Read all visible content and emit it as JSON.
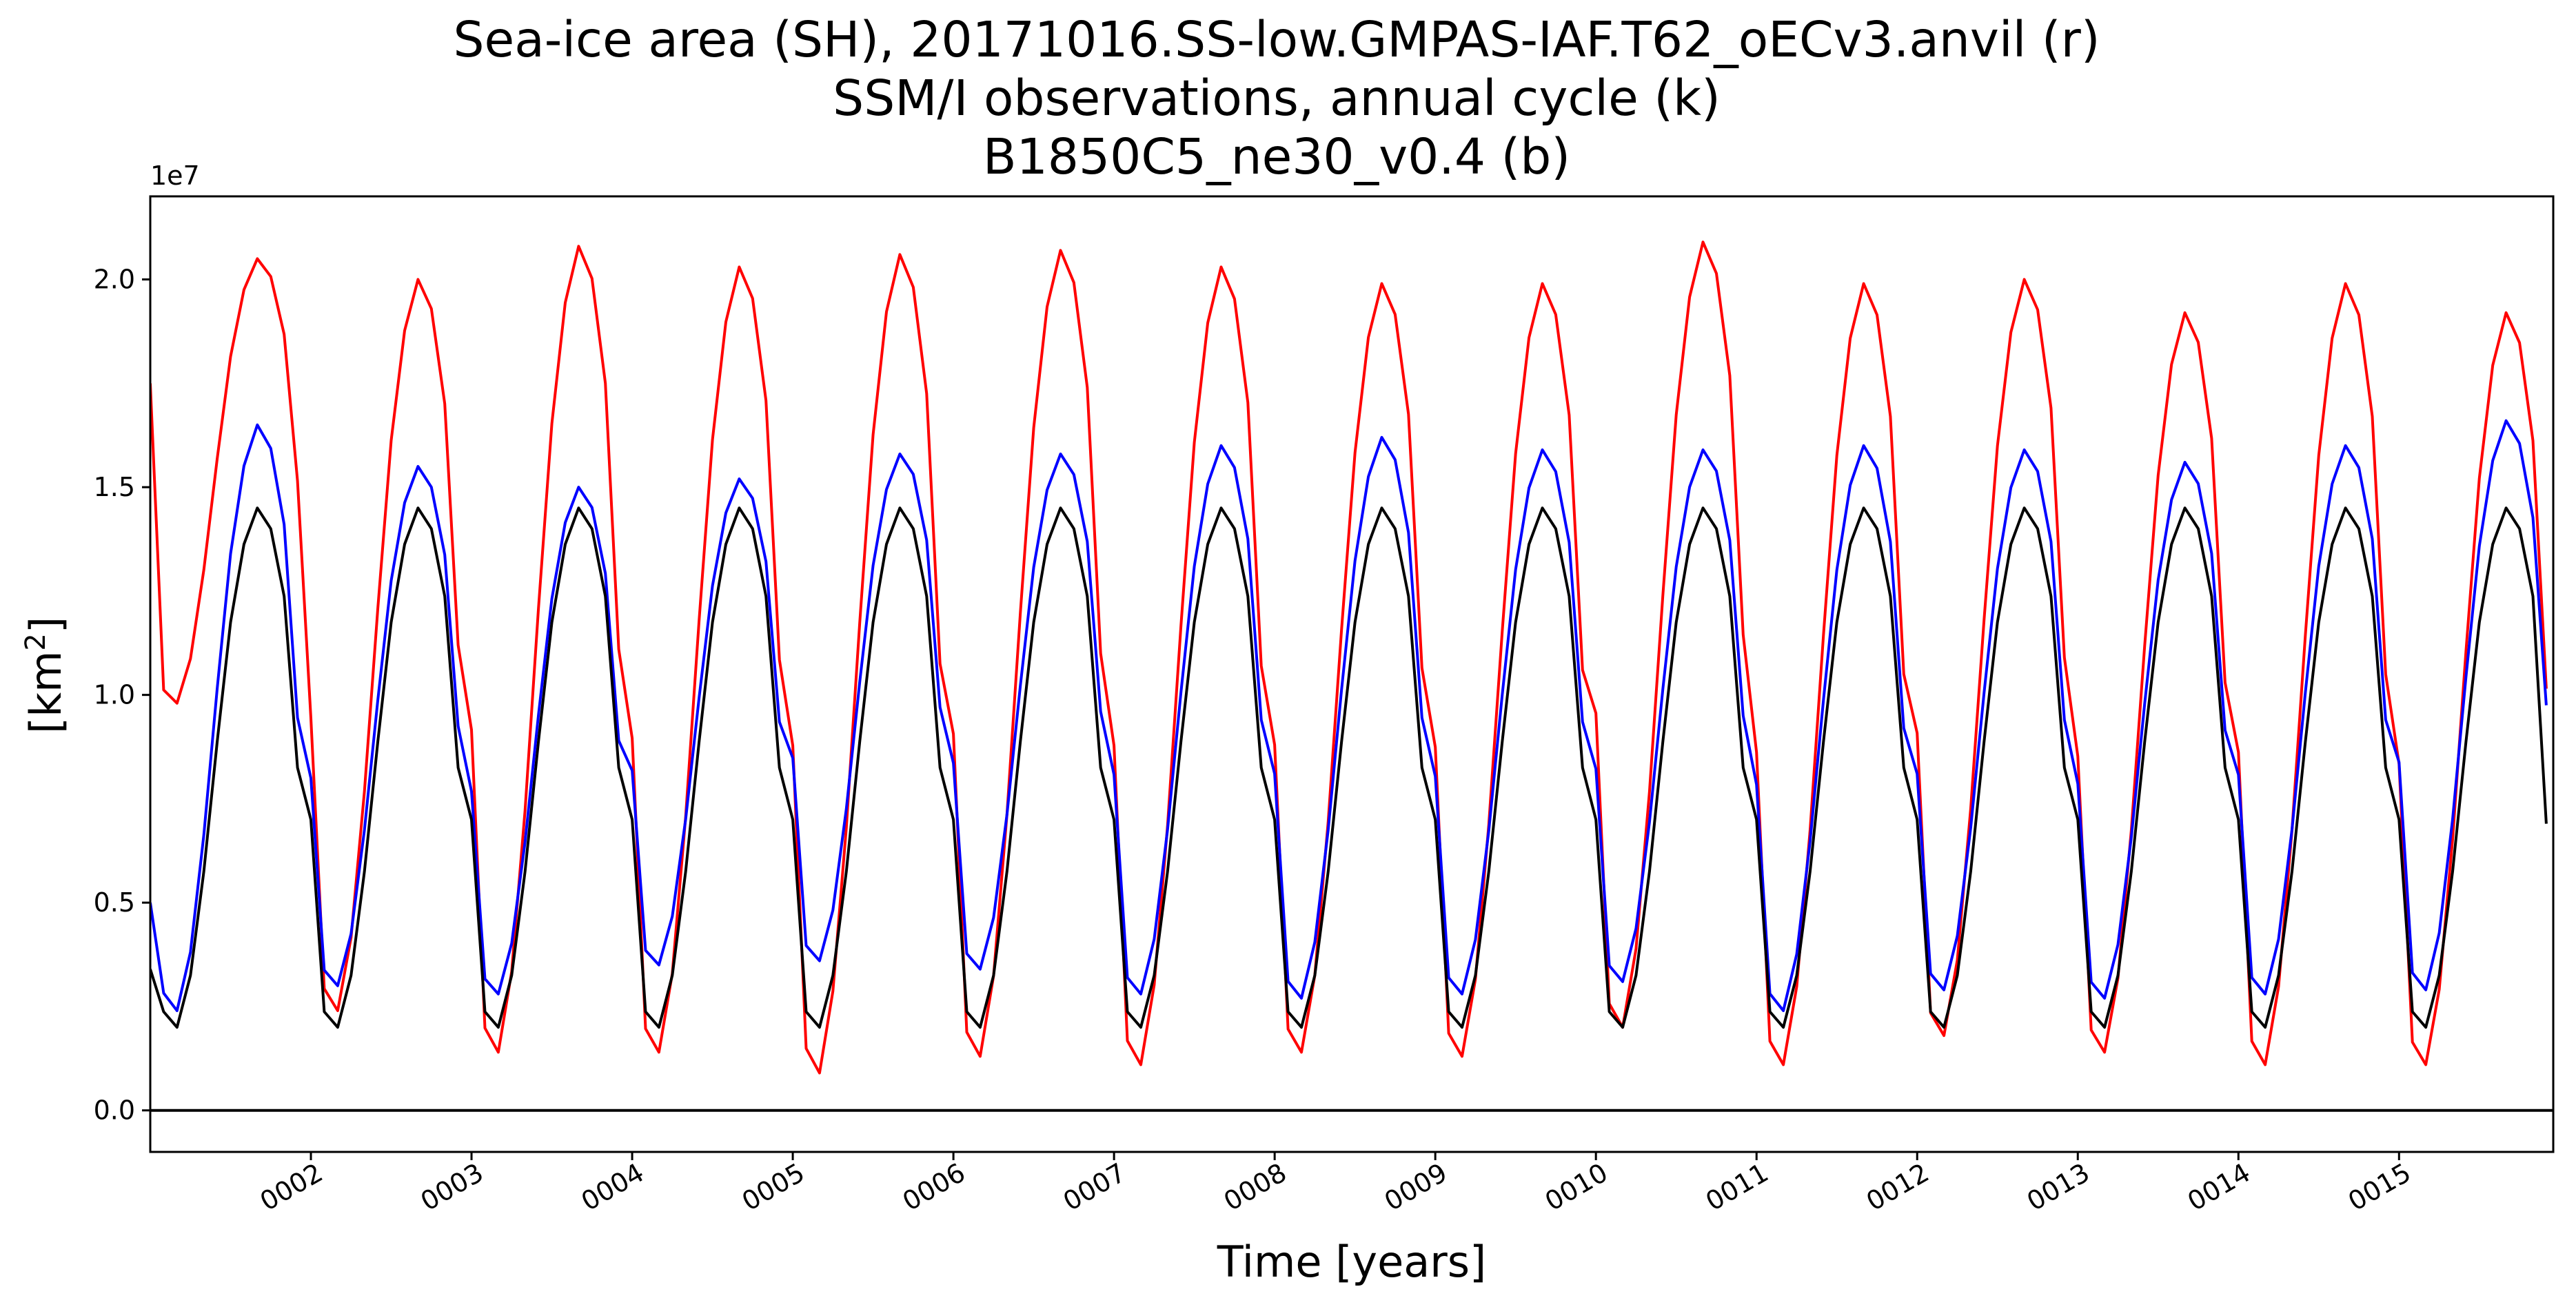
{
  "chart_data": {
    "type": "line",
    "title_lines": [
      "Sea-ice area (SH), 20171016.SS-low.GMPAS-IAF.T62_oECv3.anvil (r)",
      "SSM/I observations, annual cycle (k)",
      "B1850C5_ne30_v0.4 (b)"
    ],
    "xlabel": "Time [years]",
    "ylabel": "[km",
    "ylabel_sup": "2",
    "ylabel_close": "]",
    "y_offset_label": "1e7",
    "xlim": [
      1.0,
      15.96
    ],
    "ylim": [
      -1000000,
      22000000
    ],
    "x_ticks": [
      2,
      3,
      4,
      5,
      6,
      7,
      8,
      9,
      10,
      11,
      12,
      13,
      14,
      15
    ],
    "x_tick_labels": [
      "0002",
      "0003",
      "0004",
      "0005",
      "0006",
      "0007",
      "0008",
      "0009",
      "0010",
      "0011",
      "0012",
      "0013",
      "0014",
      "0015"
    ],
    "y_ticks": [
      0,
      5000000,
      10000000,
      15000000,
      20000000
    ],
    "y_tick_labels": [
      "0.0",
      "0.5",
      "1.0",
      "1.5",
      "2.0"
    ],
    "reference_line_y": 0,
    "series": [
      {
        "color": "#ff0000",
        "annual_max": [
          20500000,
          20000000,
          20800000,
          20300000,
          20600000,
          20700000,
          20300000,
          19900000,
          19900000,
          20900000,
          19900000,
          20000000,
          19200000,
          19900000,
          19200000
        ],
        "annual_min": [
          9800000,
          2400000,
          1400000,
          1400000,
          900000,
          1300000,
          1100000,
          1400000,
          1300000,
          2000000,
          1100000,
          1800000,
          1400000,
          1100000,
          1100000
        ],
        "first_value": 17500000
      },
      {
        "color": "#0000ff",
        "annual_max": [
          16500000,
          15500000,
          15000000,
          15200000,
          15800000,
          15800000,
          16000000,
          16200000,
          15900000,
          15900000,
          16000000,
          15900000,
          15600000,
          16000000,
          16600000
        ],
        "annual_min": [
          2400000,
          3000000,
          2800000,
          3500000,
          3600000,
          3400000,
          2800000,
          2700000,
          2800000,
          3100000,
          2400000,
          2900000,
          2700000,
          2800000,
          2900000
        ],
        "first_value": 5000000
      },
      {
        "color": "#000000",
        "annual_max": [
          14500000,
          14500000,
          14500000,
          14500000,
          14500000,
          14500000,
          14500000,
          14500000,
          14500000,
          14500000,
          14500000,
          14500000,
          14500000,
          14500000,
          14500000
        ],
        "annual_min": [
          2000000,
          2000000,
          2000000,
          2000000,
          2000000,
          2000000,
          2000000,
          2000000,
          2000000,
          2000000,
          2000000,
          2000000,
          2000000,
          2000000,
          2000000
        ],
        "first_value": 3400000,
        "last_value": 6900000
      }
    ]
  }
}
